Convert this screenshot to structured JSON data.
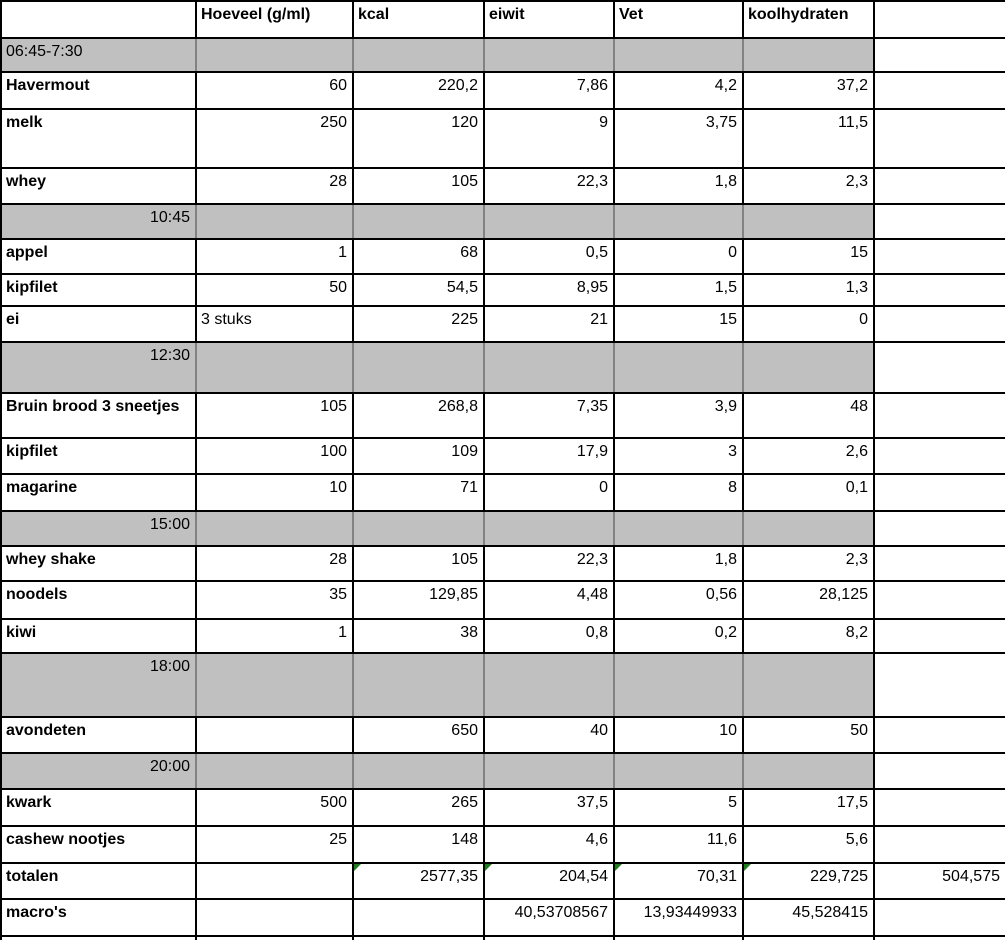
{
  "table": {
    "column_headers": [
      "",
      "Hoeveel (g/ml)",
      "kcal",
      "eiwit",
      "Vet",
      "koolhydraten",
      ""
    ],
    "colors": {
      "section_row_fill": "#c0c0c0",
      "grid_line": "#000000",
      "formula_indicator_green": "#1e7d1e"
    },
    "rows": [
      {
        "kind": "time",
        "label": "06:45-7:30",
        "align": "left"
      },
      {
        "kind": "item",
        "cells": {
          "name": "Havermout",
          "amount": "60",
          "kcal": "220,2",
          "eiwit": "7,86",
          "vet": "4,2",
          "carbs": "37,2",
          "extra": ""
        }
      },
      {
        "kind": "item",
        "cells": {
          "name": "melk",
          "amount": "250",
          "kcal": "120",
          "eiwit": "9",
          "vet": "3,75",
          "carbs": "11,5",
          "extra": ""
        }
      },
      {
        "kind": "item",
        "cells": {
          "name": "whey",
          "amount": "28",
          "kcal": "105",
          "eiwit": "22,3",
          "vet": "1,8",
          "carbs": "2,3",
          "extra": ""
        }
      },
      {
        "kind": "time",
        "label": "10:45",
        "align": "right"
      },
      {
        "kind": "item",
        "cells": {
          "name": "appel",
          "amount": "1",
          "kcal": "68",
          "eiwit": "0,5",
          "vet": "0",
          "carbs": "15",
          "extra": ""
        }
      },
      {
        "kind": "item",
        "cells": {
          "name": "kipfilet",
          "amount": "50",
          "kcal": "54,5",
          "eiwit": "8,95",
          "vet": "1,5",
          "carbs": "1,3",
          "extra": ""
        }
      },
      {
        "kind": "item",
        "cells": {
          "name": "ei",
          "amount": "3 stuks",
          "kcal": "225",
          "eiwit": "21",
          "vet": "15",
          "carbs": "0",
          "extra": ""
        }
      },
      {
        "kind": "time",
        "label": "12:30",
        "align": "right"
      },
      {
        "kind": "item",
        "cells": {
          "name": "Bruin brood 3 sneetjes",
          "amount": "105",
          "kcal": "268,8",
          "eiwit": "7,35",
          "vet": "3,9",
          "carbs": "48",
          "extra": ""
        }
      },
      {
        "kind": "item",
        "cells": {
          "name": "kipfilet",
          "amount": "100",
          "kcal": "109",
          "eiwit": "17,9",
          "vet": "3",
          "carbs": "2,6",
          "extra": ""
        }
      },
      {
        "kind": "item",
        "cells": {
          "name": "magarine",
          "amount": "10",
          "kcal": "71",
          "eiwit": "0",
          "vet": "8",
          "carbs": "0,1",
          "extra": ""
        }
      },
      {
        "kind": "time",
        "label": "15:00",
        "align": "right"
      },
      {
        "kind": "item",
        "cells": {
          "name": "whey shake",
          "amount": "28",
          "kcal": "105",
          "eiwit": "22,3",
          "vet": "1,8",
          "carbs": "2,3",
          "extra": ""
        }
      },
      {
        "kind": "item",
        "cells": {
          "name": "noodels",
          "amount": "35",
          "kcal": "129,85",
          "eiwit": "4,48",
          "vet": "0,56",
          "carbs": "28,125",
          "extra": ""
        }
      },
      {
        "kind": "item",
        "cells": {
          "name": "kiwi",
          "amount": "1",
          "kcal": "38",
          "eiwit": "0,8",
          "vet": "0,2",
          "carbs": "8,2",
          "extra": ""
        }
      },
      {
        "kind": "time",
        "label": "18:00",
        "align": "right"
      },
      {
        "kind": "item",
        "cells": {
          "name": "avondeten",
          "amount": "",
          "kcal": "650",
          "eiwit": "40",
          "vet": "10",
          "carbs": "50",
          "extra": ""
        }
      },
      {
        "kind": "time",
        "label": "20:00",
        "align": "right"
      },
      {
        "kind": "item",
        "cells": {
          "name": "kwark",
          "amount": "500",
          "kcal": "265",
          "eiwit": "37,5",
          "vet": "5",
          "carbs": "17,5",
          "extra": ""
        }
      },
      {
        "kind": "item",
        "cells": {
          "name": "cashew nootjes",
          "amount": "25",
          "kcal": "148",
          "eiwit": "4,6",
          "vet": "11,6",
          "carbs": "5,6",
          "extra": ""
        }
      },
      {
        "kind": "item",
        "cells": {
          "name": "totalen",
          "amount": "",
          "kcal": "2577,35",
          "eiwit": "204,54",
          "vet": "70,31",
          "carbs": "229,725",
          "extra": "504,575"
        },
        "markers": [
          "kcal",
          "eiwit",
          "vet",
          "carbs"
        ]
      },
      {
        "kind": "item",
        "cells": {
          "name": "macro's",
          "amount": "",
          "kcal": "",
          "eiwit": "40,53708567",
          "vet": "13,93449933",
          "carbs": "45,528415",
          "extra": ""
        }
      }
    ]
  }
}
